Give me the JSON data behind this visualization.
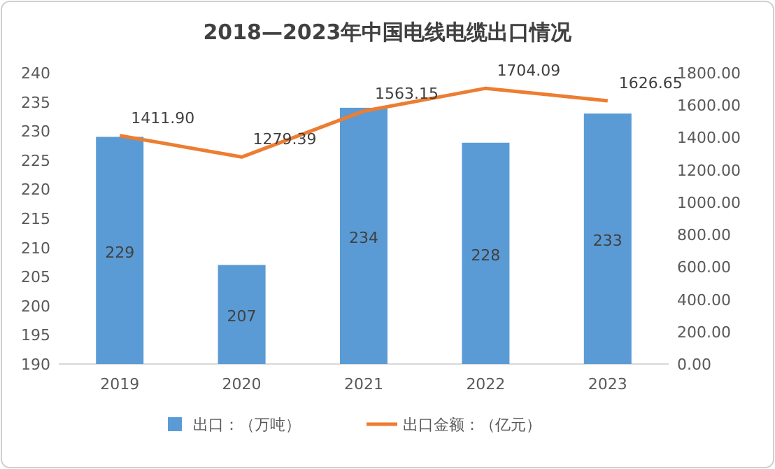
{
  "chart_data": {
    "type": "bar",
    "title": "2018—2023年中国电线电缆出口情况",
    "categories": [
      "2019",
      "2020",
      "2021",
      "2022",
      "2023"
    ],
    "series": [
      {
        "name": "出口：（万吨）",
        "color": "#5b9bd5",
        "values": [
          229,
          207,
          234,
          228,
          233
        ],
        "value_labels": [
          "229",
          "207",
          "234",
          "228",
          "233"
        ]
      },
      {
        "name": "出口金额：（亿元）",
        "type": "line",
        "axis": "y2",
        "color": "#ed7d31",
        "marker": "none",
        "values": [
          1411.9,
          1279.39,
          1563.15,
          1704.09,
          1626.65
        ],
        "value_labels": [
          "1411.90",
          "1279.39",
          "1563.15",
          "1704.09",
          "1626.65"
        ]
      }
    ],
    "ylim": [
      190,
      240
    ],
    "yticks": [
      190,
      195,
      200,
      205,
      210,
      215,
      220,
      225,
      230,
      235,
      240
    ],
    "y2lim": [
      0,
      1800
    ],
    "y2ticks": [
      {
        "value": 0,
        "label": "0.00"
      },
      {
        "value": 200,
        "label": "200.00"
      },
      {
        "value": 400,
        "label": "400.00"
      },
      {
        "value": 600,
        "label": "600.00"
      },
      {
        "value": 800,
        "label": "800.00"
      },
      {
        "value": 1000,
        "label": "1000.00"
      },
      {
        "value": 1200,
        "label": "1200.00"
      },
      {
        "value": 1400,
        "label": "1400.00"
      },
      {
        "value": 1600,
        "label": "1600.00"
      },
      {
        "value": 1800,
        "label": "1800.00"
      }
    ],
    "legend": "bottom"
  }
}
